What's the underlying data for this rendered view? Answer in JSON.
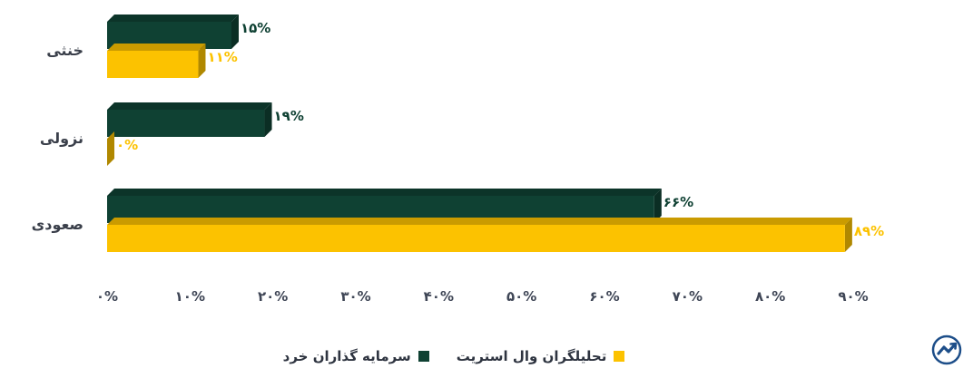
{
  "chart_data": {
    "type": "bar",
    "orientation": "horizontal",
    "categories": [
      "خنثی",
      "نزولی",
      "صعودی"
    ],
    "series": [
      {
        "name": "سرمایه گذاران خرد",
        "color": "#0f4133",
        "values": [
          15,
          19,
          66
        ],
        "labels": [
          "۱۵%",
          "۱۹%",
          "۶۶%"
        ]
      },
      {
        "name": "تحلیلگران وال استریت",
        "color": "#fcc200",
        "values": [
          11,
          0,
          89
        ],
        "labels": [
          "۱۱%",
          "۰%",
          "۸۹%"
        ]
      }
    ],
    "xlim": [
      0,
      90
    ],
    "xticks": [
      "۰%",
      "۱۰%",
      "۲۰%",
      "۳۰%",
      "۴۰%",
      "۵۰%",
      "۶۰%",
      "۷۰%",
      "۸۰%",
      "۹۰%"
    ],
    "grid": false,
    "legend_position": "bottom",
    "title": "",
    "xlabel": "",
    "ylabel": ""
  },
  "logo": {
    "icon": "trend-arrow-logo-icon",
    "color": "#1d4e89"
  }
}
